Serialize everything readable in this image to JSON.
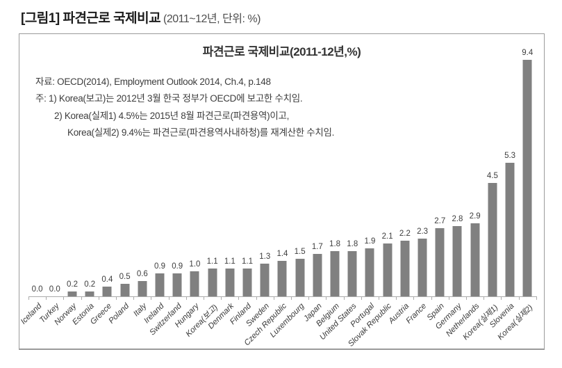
{
  "page": {
    "heading_main": "[그림1] 파견근로 국제비교",
    "heading_sub": " (2011~12년, 단위: %)"
  },
  "figure": {
    "title": "파견근로 국제비교(2011-12년,%)",
    "source_note": "자료: OECD(2014), Employment Outlook 2014, Ch.4, p.148",
    "notes": [
      "주: 1) Korea(보고)는 2012년 3월 한국 정부가 OECD에 보고한 수치임.",
      "2) Korea(실제1) 4.5%는 2015년 8월 파견근로(파견용역)이고,",
      "Korea(실제2) 9.4%는 파견근로(파견용역사내하청)를 재계산한 수치임."
    ]
  },
  "chart_data": {
    "type": "bar",
    "title": "파견근로 국제비교(2011-12년,%)",
    "categories": [
      "Iceland",
      "Turkey",
      "Norway",
      "Estonia",
      "Greece",
      "Poland",
      "Italy",
      "Ireland",
      "Switzerland",
      "Hungary",
      "Korea(보고)",
      "Denmark",
      "Finland",
      "Sweden",
      "Czech Republic",
      "Luxembourg",
      "Japan",
      "Belgium",
      "United States",
      "Portugal",
      "Slovak Republic",
      "Austria",
      "France",
      "Spain",
      "Germany",
      "Netherlands",
      "Korea(실제1)",
      "Slovenia",
      "Korea(실제2)"
    ],
    "values": [
      0.0,
      0.0,
      0.2,
      0.2,
      0.4,
      0.5,
      0.6,
      0.9,
      0.9,
      1.0,
      1.1,
      1.1,
      1.1,
      1.3,
      1.4,
      1.5,
      1.7,
      1.8,
      1.8,
      1.9,
      2.1,
      2.2,
      2.3,
      2.7,
      2.8,
      2.9,
      4.5,
      5.3,
      9.4
    ],
    "xlabel": "",
    "ylabel": "",
    "ylim": [
      0,
      9.4
    ],
    "grid": false,
    "legend": false,
    "value_labels": true,
    "bar_color": "#808080",
    "axis_color": "#ababab",
    "label_style": "italic, rotated 45deg"
  }
}
